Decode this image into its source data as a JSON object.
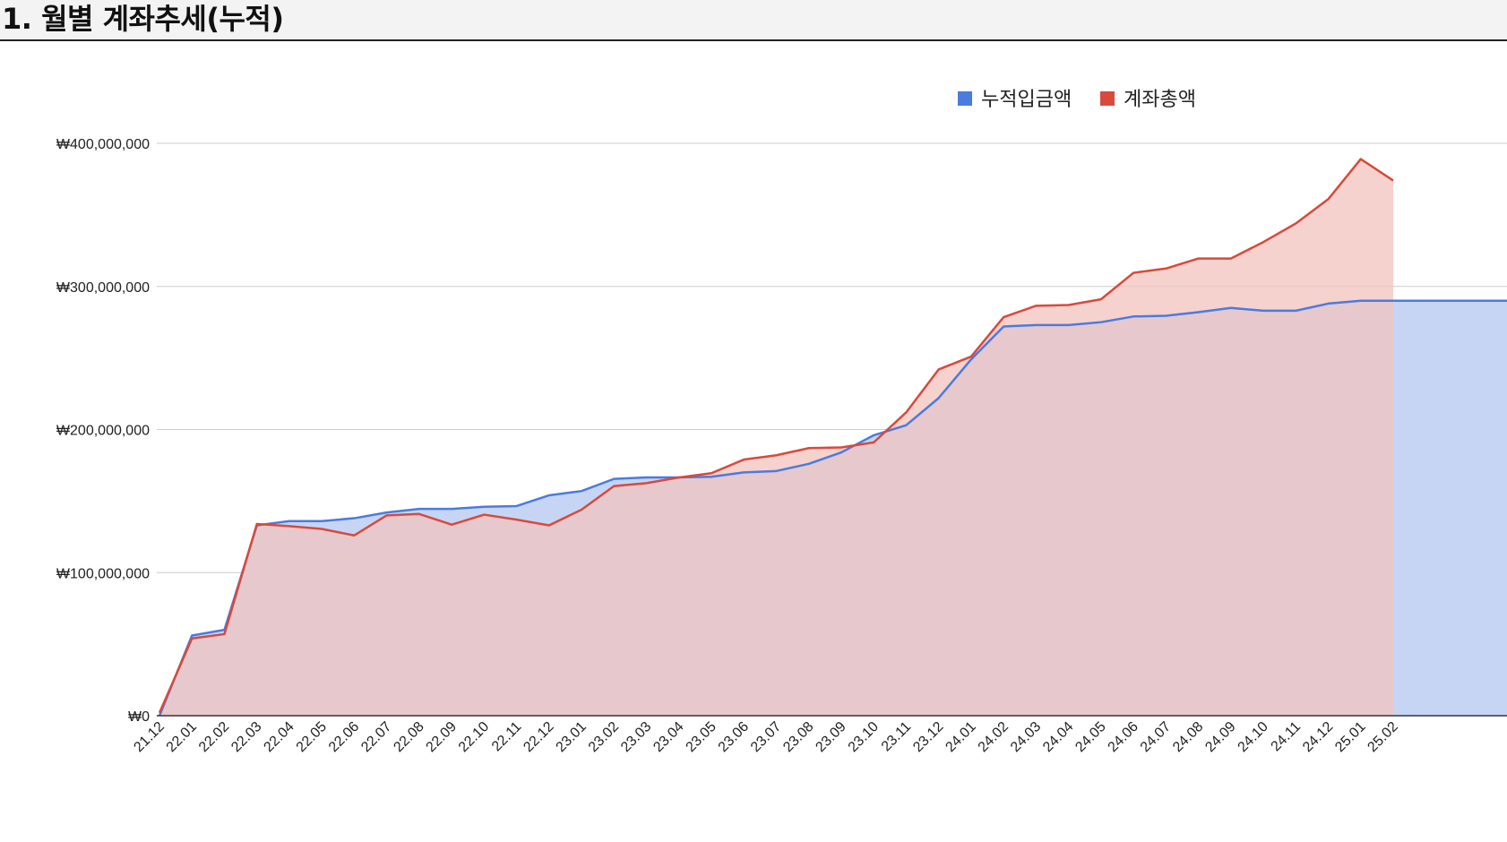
{
  "section": {
    "title": "1. 월별 계좌추세(누적)"
  },
  "chart_data": {
    "type": "area",
    "title": "",
    "xlabel": "",
    "ylabel": "",
    "ylim": [
      0,
      400000000
    ],
    "yticks": [
      0,
      100000000,
      200000000,
      300000000,
      400000000
    ],
    "ytick_labels": [
      "₩0",
      "₩100,000,000",
      "₩200,000,000",
      "₩300,000,000",
      "₩400,000,000"
    ],
    "grid": true,
    "legend_position": "top-right",
    "categories": [
      "21.12",
      "22.01",
      "22.02",
      "22.03",
      "22.04",
      "22.05",
      "22.06",
      "22.07",
      "22.08",
      "22.09",
      "22.10",
      "22.11",
      "22.12",
      "23.01",
      "23.02",
      "23.03",
      "23.04",
      "23.05",
      "23.06",
      "23.07",
      "23.08",
      "23.09",
      "23.10",
      "23.11",
      "23.12",
      "24.01",
      "24.02",
      "24.03",
      "24.04",
      "24.05",
      "24.06",
      "24.07",
      "24.08",
      "24.09",
      "24.10",
      "24.11",
      "24.12",
      "25.01",
      "25.02"
    ],
    "series": [
      {
        "name": "누적입금액",
        "color": "#4a7bdf",
        "fill": "#c7d5f5",
        "values": [
          0,
          56000000,
          60000000,
          133000000,
          136000000,
          136000000,
          138000000,
          142000000,
          144500000,
          144500000,
          146000000,
          146500000,
          154000000,
          157000000,
          165500000,
          166500000,
          166500000,
          167000000,
          170000000,
          171000000,
          176000000,
          184000000,
          196000000,
          203000000,
          222000000,
          249000000,
          272000000,
          273000000,
          273000000,
          275000000,
          279000000,
          279500000,
          282000000,
          285000000,
          283000000,
          283000000,
          288000000,
          290000000,
          290000000
        ]
      },
      {
        "name": "계좌총액",
        "color": "#d84a3c",
        "fill": "#f2c3bd",
        "values": [
          2000000,
          54000000,
          57000000,
          134000000,
          132500000,
          130500000,
          126000000,
          140000000,
          141000000,
          133500000,
          140500000,
          137000000,
          133000000,
          144000000,
          160500000,
          162500000,
          166500000,
          169500000,
          179000000,
          182000000,
          187000000,
          187500000,
          191000000,
          212000000,
          242000000,
          251000000,
          278500000,
          286500000,
          287000000,
          291000000,
          309500000,
          312500000,
          319500000,
          319500000,
          331000000,
          344000000,
          361000000,
          389000000,
          374000000
        ]
      }
    ]
  }
}
